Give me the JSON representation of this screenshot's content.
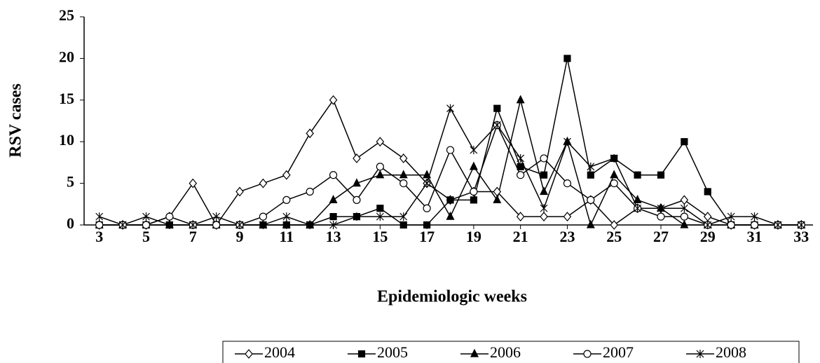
{
  "chart_data": {
    "type": "line",
    "y_label": "RSV cases",
    "x_label": "Epidemiologic weeks",
    "x": [
      3,
      4,
      5,
      6,
      7,
      8,
      9,
      10,
      11,
      12,
      13,
      14,
      15,
      16,
      17,
      18,
      19,
      20,
      21,
      22,
      23,
      24,
      25,
      26,
      27,
      28,
      29,
      30,
      31,
      32,
      33
    ],
    "xlim": [
      2.35,
      33.5
    ],
    "xticks": [
      3,
      5,
      7,
      9,
      11,
      13,
      15,
      17,
      19,
      21,
      23,
      25,
      27,
      29,
      31,
      33
    ],
    "ylim": [
      0,
      25
    ],
    "yticks": [
      0,
      5,
      10,
      15,
      20,
      25
    ],
    "grid": false,
    "legend": "bottom",
    "series": [
      {
        "name": "2004",
        "color": "#000000",
        "marker": "diamond-open",
        "values": [
          0,
          0,
          0,
          1,
          5,
          0,
          4,
          5,
          6,
          11,
          15,
          8,
          10,
          8,
          5,
          3,
          4,
          4,
          1,
          1,
          1,
          3,
          0,
          2,
          2,
          3,
          1,
          0,
          0,
          0,
          0
        ]
      },
      {
        "name": "2005",
        "color": "#000000",
        "marker": "square",
        "values": [
          0,
          0,
          0,
          0,
          0,
          0,
          0,
          0,
          0,
          0,
          1,
          1,
          2,
          0,
          0,
          3,
          3,
          14,
          7,
          6,
          20,
          6,
          8,
          6,
          6,
          10,
          4,
          0,
          0,
          0,
          0
        ]
      },
      {
        "name": "2006",
        "color": "#000000",
        "marker": "triangle",
        "values": [
          0,
          0,
          0,
          0,
          0,
          0,
          0,
          0,
          0,
          0,
          3,
          5,
          6,
          6,
          6,
          1,
          7,
          3,
          15,
          4,
          10,
          0,
          6,
          3,
          2,
          0,
          0,
          0,
          0,
          0,
          0
        ]
      },
      {
        "name": "2007",
        "color": "#000000",
        "marker": "circle-open",
        "values": [
          0,
          0,
          0,
          1,
          0,
          0,
          0,
          1,
          3,
          4,
          6,
          3,
          7,
          5,
          2,
          9,
          4,
          12,
          6,
          8,
          5,
          3,
          5,
          2,
          1,
          1,
          0,
          0,
          0,
          0,
          0
        ]
      },
      {
        "name": "2008",
        "color": "#000000",
        "marker": "asterisk",
        "values": [
          1,
          0,
          1,
          0,
          0,
          1,
          0,
          0,
          1,
          0,
          0,
          1,
          1,
          1,
          5,
          14,
          9,
          12,
          8,
          2,
          10,
          7,
          8,
          2,
          2,
          2,
          0,
          1,
          1,
          0,
          0
        ]
      }
    ]
  }
}
